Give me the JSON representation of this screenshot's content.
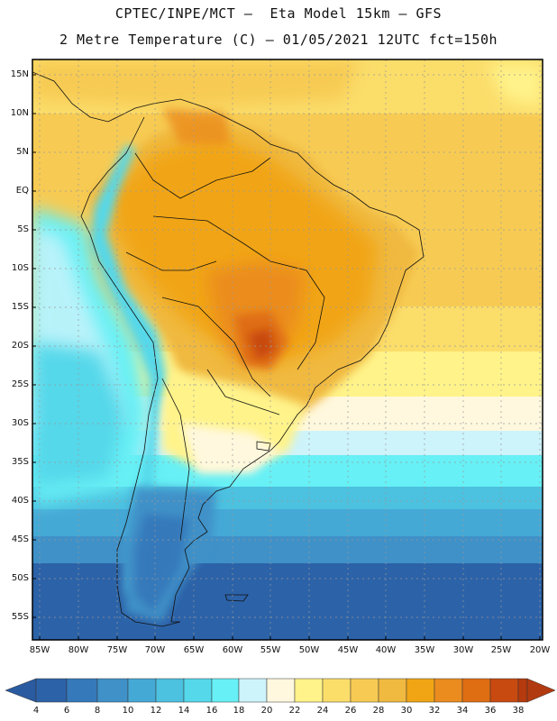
{
  "header": {
    "line1": "CPTEC/INPE/MCT —  Eta Model 15km — GFS",
    "line2": "2 Metre Temperature (C) — 01/05/2021 12UTC fct=150h"
  },
  "map": {
    "lat_labels": [
      "15N",
      "10N",
      "5N",
      "EQ",
      "5S",
      "10S",
      "15S",
      "20S",
      "25S",
      "30S",
      "35S",
      "40S",
      "45S",
      "50S",
      "55S"
    ],
    "lon_labels": [
      "85W",
      "80W",
      "75W",
      "70W",
      "65W",
      "60W",
      "55W",
      "50W",
      "45W",
      "40W",
      "35W",
      "30W",
      "25W",
      "20W"
    ]
  },
  "colorbar": {
    "labels": [
      "4",
      "6",
      "8",
      "10",
      "12",
      "14",
      "16",
      "18",
      "20",
      "22",
      "24",
      "26",
      "28",
      "30",
      "32",
      "34",
      "36",
      "38"
    ],
    "colors": [
      "#2c62a8",
      "#3579bb",
      "#3f91c8",
      "#45a9d6",
      "#4cc1e0",
      "#54d8ea",
      "#67f0f5",
      "#cdf3fb",
      "#fff8de",
      "#fff38a",
      "#fbdd6a",
      "#f7cb53",
      "#f0b93f",
      "#f1a514",
      "#eb8c1f",
      "#df6d12",
      "#c84a10",
      "#b53a0d"
    ],
    "left_arrow_color": "#2a5aa0",
    "right_arrow_color": "#b23a10"
  }
}
